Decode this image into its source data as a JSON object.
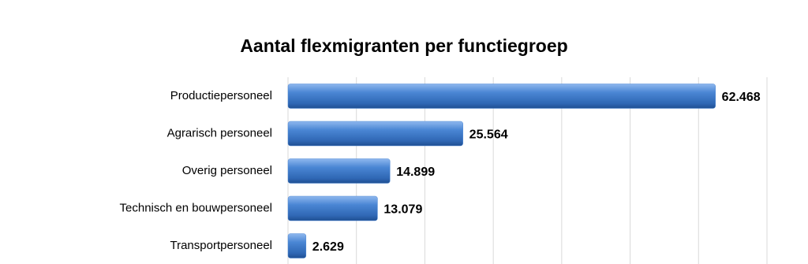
{
  "chart_data": {
    "type": "hbar",
    "title": "Aantal flexmigranten per functiegroep",
    "categories": [
      "Productiepersoneel",
      "Agrarisch personeel",
      "Overig personeel",
      "Technisch en bouwpersoneel",
      "Transportpersoneel"
    ],
    "values": [
      62468,
      25564,
      14899,
      13079,
      2629
    ],
    "value_labels": [
      "62.468",
      "25.564",
      "14.899",
      "13.079",
      "2.629"
    ],
    "color": "#4a86d4",
    "xlim": [
      0,
      70000
    ],
    "xticks": [
      0,
      10000,
      20000,
      30000,
      40000,
      50000,
      60000,
      70000
    ],
    "grid": true
  }
}
